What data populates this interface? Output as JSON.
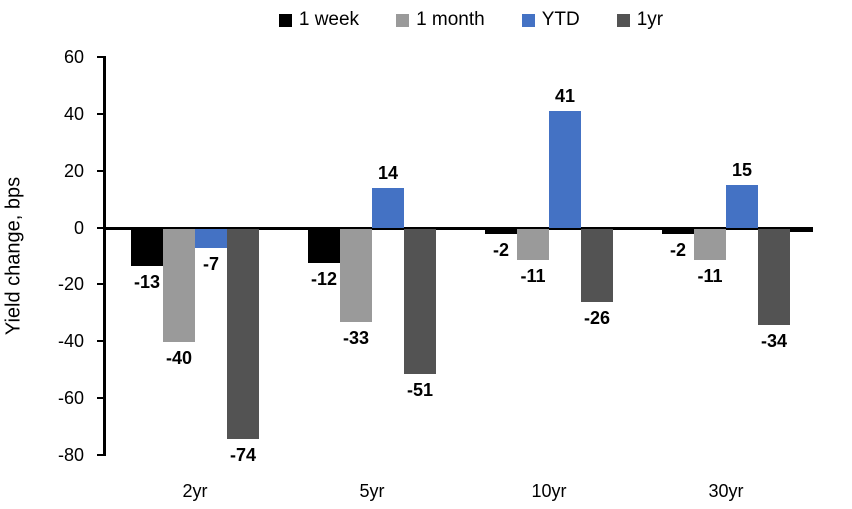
{
  "chart_data": {
    "type": "bar",
    "title": "",
    "ylabel": "Yield change, bps",
    "xlabel": "",
    "categories": [
      "2yr",
      "5yr",
      "10yr",
      "30yr"
    ],
    "series": [
      {
        "name": "1 week",
        "color": "#000000",
        "values": [
          -13,
          -12,
          -2,
          -2
        ]
      },
      {
        "name": "1 month",
        "color": "#9A9A9A",
        "values": [
          -40,
          -33,
          -11,
          -11
        ]
      },
      {
        "name": "YTD",
        "color": "#4472C4",
        "values": [
          -7,
          14,
          41,
          15
        ]
      },
      {
        "name": "1yr",
        "color": "#535353",
        "values": [
          -74,
          -51,
          -26,
          -34
        ]
      }
    ],
    "ylim": [
      -80,
      60
    ],
    "ytick_step": 20,
    "ytick_labels": [
      "60",
      "40",
      "20",
      "0",
      "-20",
      "-40",
      "-60",
      "-80"
    ],
    "grid": false,
    "legend_position": "top",
    "data_labels": true,
    "axis_color": "#000000"
  }
}
